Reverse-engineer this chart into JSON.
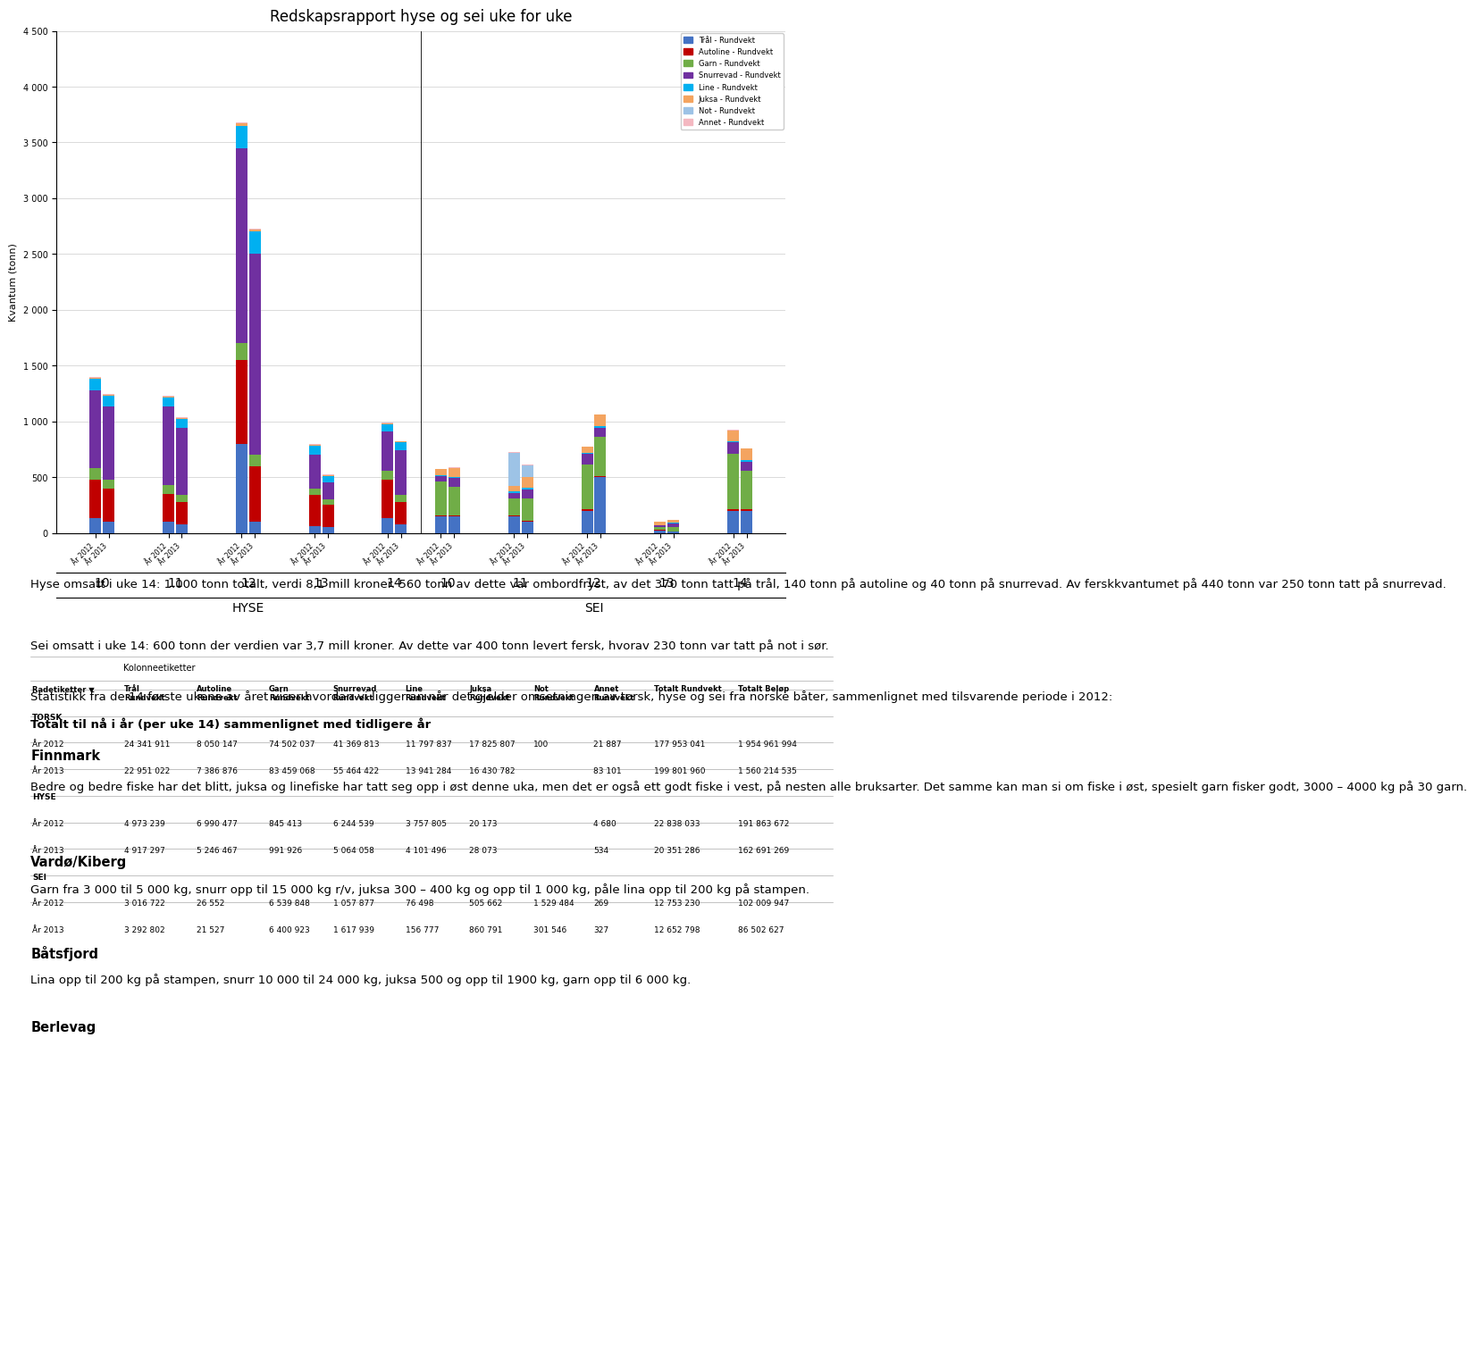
{
  "title": "Redskapsrapport hyse og sei uke for uke",
  "ylabel": "Kvantum (tonn)",
  "legend_labels": [
    "Annet - Rundvekt",
    "Not - Rundvekt",
    "Juksa - Rundvekt",
    "Line - Rundvekt",
    "Snurrevad - Rundvekt",
    "Garn - Rundvekt",
    "Autoline - Rundvekt",
    "Trål - Rundvekt"
  ],
  "legend_colors": [
    "#f4b8c1",
    "#9dc3e6",
    "#f4a460",
    "#00b0f0",
    "#7030a0",
    "#70ad47",
    "#c00000",
    "#4472c4"
  ],
  "hyse_weeks": [
    10,
    11,
    12,
    13,
    14
  ],
  "sei_weeks": [
    10,
    11,
    12,
    13,
    14
  ],
  "hyse_2012": {
    "tral": [
      130,
      100,
      800,
      60,
      130
    ],
    "autoline": [
      350,
      250,
      750,
      280,
      350
    ],
    "garn": [
      100,
      80,
      150,
      60,
      80
    ],
    "snurrevad": [
      700,
      700,
      1750,
      300,
      350
    ],
    "line": [
      100,
      80,
      200,
      80,
      60
    ],
    "juksa": [
      10,
      10,
      20,
      10,
      10
    ],
    "not": [
      0,
      0,
      0,
      0,
      0
    ],
    "annet": [
      10,
      10,
      10,
      10,
      10
    ]
  },
  "hyse_2013": {
    "tral": [
      100,
      80,
      100,
      50,
      80
    ],
    "autoline": [
      300,
      200,
      500,
      200,
      200
    ],
    "garn": [
      80,
      60,
      100,
      50,
      60
    ],
    "snurrevad": [
      650,
      600,
      1800,
      150,
      400
    ],
    "line": [
      100,
      80,
      200,
      60,
      70
    ],
    "juksa": [
      10,
      10,
      20,
      10,
      10
    ],
    "not": [
      0,
      0,
      0,
      0,
      0
    ],
    "annet": [
      5,
      5,
      5,
      5,
      5
    ]
  },
  "sei_2012": {
    "tral": [
      150,
      150,
      200,
      20,
      200
    ],
    "autoline": [
      10,
      10,
      10,
      5,
      10
    ],
    "garn": [
      300,
      150,
      400,
      30,
      500
    ],
    "snurrevad": [
      50,
      50,
      100,
      10,
      100
    ],
    "line": [
      10,
      10,
      10,
      5,
      10
    ],
    "juksa": [
      50,
      50,
      50,
      30,
      100
    ],
    "not": [
      0,
      300,
      0,
      0,
      0
    ],
    "annet": [
      5,
      5,
      5,
      2,
      5
    ]
  },
  "sei_2013": {
    "tral": [
      150,
      100,
      500,
      10,
      200
    ],
    "autoline": [
      10,
      10,
      10,
      5,
      10
    ],
    "garn": [
      250,
      200,
      350,
      40,
      350
    ],
    "snurrevad": [
      80,
      80,
      80,
      30,
      80
    ],
    "line": [
      15,
      15,
      20,
      10,
      15
    ],
    "juksa": [
      80,
      100,
      100,
      20,
      100
    ],
    "not": [
      0,
      100,
      0,
      0,
      0
    ],
    "annet": [
      5,
      5,
      5,
      2,
      5
    ]
  },
  "table_title": "Totalt til nå i år (per uke 14) sammenlignet med tidligere år",
  "table_data": {
    "TORSK": {
      "Ar 2012": [
        "24 341 911",
        "8 050 147",
        "74 502 037",
        "41 369 813",
        "11 797 837",
        "17 825 807",
        "100",
        "21 887",
        "177 953 041",
        "1 954 961 994"
      ],
      "Ar 2013": [
        "22 951 022",
        "7 386 876",
        "83 459 068",
        "55 464 422",
        "13 941 284",
        "16 430 782",
        "",
        "83 101",
        "199 801 960",
        "1 560 214 535"
      ]
    },
    "HYSE": {
      "Ar 2012": [
        "4 973 239",
        "6 990 477",
        "845 413",
        "6 244 539",
        "3 757 805",
        "20 173",
        "",
        "4 680",
        "22 838 033",
        "191 863 672"
      ],
      "Ar 2013": [
        "4 917 297",
        "5 246 467",
        "991 926",
        "5 064 058",
        "4 101 496",
        "28 073",
        "",
        "534",
        "20 351 286",
        "162 691 269"
      ]
    },
    "SEI": {
      "Ar 2012": [
        "3 016 722",
        "26 552",
        "6 539 848",
        "1 057 877",
        "76 498",
        "505 662",
        "1 529 484",
        "269",
        "12 753 230",
        "102 009 947"
      ],
      "Ar 2013": [
        "3 292 802",
        "21 527",
        "6 400 923",
        "1 617 939",
        "156 777",
        "860 791",
        "301 546",
        "327",
        "12 652 798",
        "86 502 627"
      ]
    }
  },
  "text_paragraphs": [
    {
      "text": "Hyse omsatt i uke 14: 1.000 tonn totalt, verdi 8,1 mill kroner. 560 tonn av dette var ombordfryst, av det 370 tonn tatt på trål, 140 tonn på autoline og 40 tonn på snurrevad. Av ferskkvantumet på 440 tonn var 250 tonn tatt på snurrevad.",
      "bold": false
    },
    {
      "text": "Sei omsatt i uke 14: 600 tonn der verdien var 3,7 mill kroner. Av dette var 400 tonn levert fersk, hvorav 230 tonn var tatt på not i sør.",
      "bold": false
    },
    {
      "text": "Statistikk fra de 14 første ukene av året viser hvordan vi ligger an når det gjelder omsetningen av torsk, hyse og sei fra norske båter, sammenlignet med tilsvarende periode i 2012:",
      "bold": false
    },
    {
      "text": "Finnmark",
      "bold": true
    },
    {
      "text": "Bedre og bedre fiske har det blitt, juksa og linefiske har tatt seg opp i øst denne uka, men det er også ett godt fiske i vest, på nesten alle bruksarter. Det samme kan man si om fiske i øst, spesielt garn fisker godt, 3000 – 4000 kg på 30 garn.",
      "bold": false
    },
    {
      "text": "Vardø/Kiberg",
      "bold": true
    },
    {
      "text": "Garn fra 3 000 til 5 000 kg, snurr opp til 15 000 kg r/v, juksa 300 – 400 kg og opp til 1 000 kg, påle lina opp til 200 kg på stampen.",
      "bold": false
    },
    {
      "text": "Båtsfjord",
      "bold": true
    },
    {
      "text": "Lina opp til 200 kg på stampen, snurr 10 000 til 24 000 kg, juksa 500 og opp til 1900 kg, garn opp til 6 000 kg.",
      "bold": false
    },
    {
      "text": "Berlevag",
      "bold": true
    }
  ]
}
